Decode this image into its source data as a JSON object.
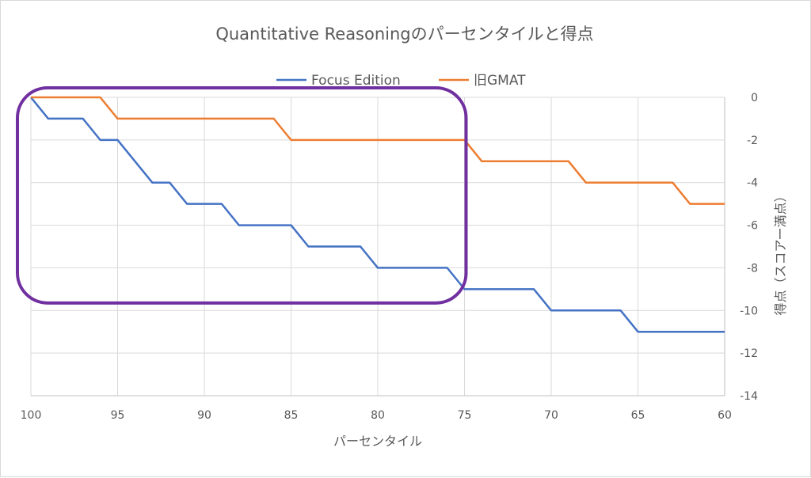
{
  "chart_data": {
    "type": "line",
    "title": "Quantitative Reasoningのパーセンタイルと得点",
    "xlabel": "パーセンタイル",
    "ylabel": "得点（スコアー満点）",
    "xlim": [
      100,
      60
    ],
    "ylim": [
      -14,
      0
    ],
    "x_ticks": [
      "100",
      "95",
      "90",
      "85",
      "80",
      "75",
      "70",
      "65",
      "60"
    ],
    "y_ticks": [
      "0",
      "-2",
      "-4",
      "-6",
      "-8",
      "-10",
      "-12",
      "-14"
    ],
    "y_axis_position": "right",
    "grid": true,
    "legend_position": "top",
    "x": [
      100,
      99,
      98,
      97,
      96,
      95,
      94,
      93,
      92,
      91,
      90,
      89,
      88,
      87,
      86,
      85,
      84,
      83,
      82,
      81,
      80,
      79,
      78,
      77,
      76,
      75,
      74,
      73,
      72,
      71,
      70,
      69,
      68,
      67,
      66,
      65,
      64,
      63,
      62,
      61,
      60
    ],
    "series": [
      {
        "name": "Focus Edition",
        "color": "#4472c4",
        "values": [
          0,
          -1,
          -1,
          -1,
          -2,
          -2,
          -3,
          -4,
          -4,
          -5,
          -5,
          -5,
          -6,
          -6,
          -6,
          -6,
          -7,
          -7,
          -7,
          -7,
          -8,
          -8,
          -8,
          -8,
          -8,
          -9,
          -9,
          -9,
          -9,
          -9,
          -10,
          -10,
          -10,
          -10,
          -10,
          -11,
          -11,
          -11,
          -11,
          -11,
          -11
        ]
      },
      {
        "name": "旧GMAT",
        "color": "#ed7d31",
        "values": [
          0,
          0,
          0,
          0,
          0,
          -1,
          -1,
          -1,
          -1,
          -1,
          -1,
          -1,
          -1,
          -1,
          -1,
          -2,
          -2,
          -2,
          -2,
          -2,
          -2,
          -2,
          -2,
          -2,
          -2,
          -2,
          -3,
          -3,
          -3,
          -3,
          -3,
          -3,
          -4,
          -4,
          -4,
          -4,
          -4,
          -4,
          -5,
          -5,
          -5
        ]
      }
    ],
    "annotation": {
      "shape": "rounded-rectangle",
      "color": "#7030a0",
      "x_range": [
        100,
        75
      ],
      "y_range": [
        0,
        -9.5
      ]
    }
  }
}
